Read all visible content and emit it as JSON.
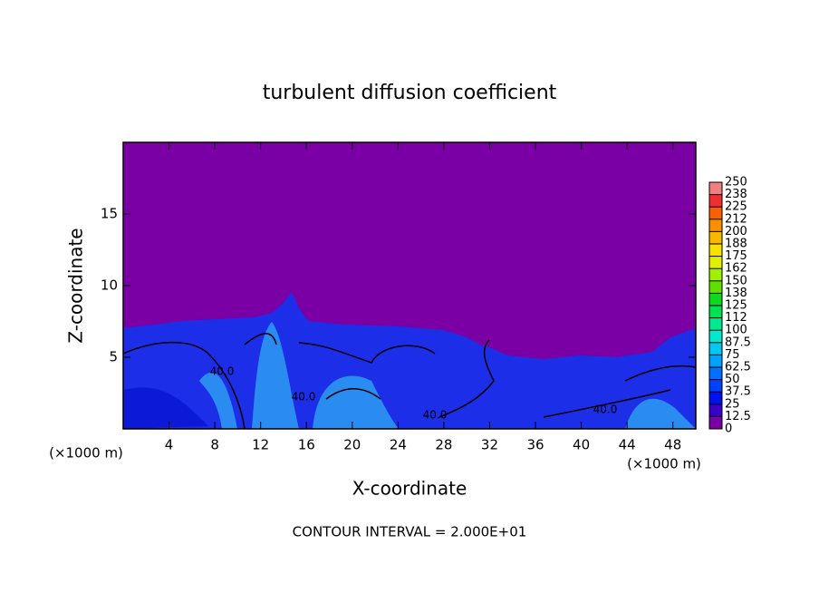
{
  "chart_data": {
    "type": "contour",
    "title": "turbulent diffusion coefficient",
    "x_label": "X-coordinate",
    "y_label": "Z-coordinate",
    "x_unit_labels": [
      "(×1000 m)",
      "(×1000 m)"
    ],
    "footer": "CONTOUR INTERVAL = 2.000E+01",
    "contour_labels": [
      "40.0",
      "40.0",
      "40.0",
      "40.0"
    ],
    "xlim": [
      0,
      50
    ],
    "ylim": [
      0,
      20
    ],
    "xticks": [
      4,
      8,
      12,
      16,
      20,
      24,
      28,
      32,
      36,
      40,
      44,
      48
    ],
    "yticks": [
      5,
      10,
      15
    ],
    "background_color": "#7a00a6",
    "colorbar": {
      "ticks": [
        0,
        12.5,
        25,
        37.5,
        50,
        62.5,
        75,
        87.5,
        100,
        {
          "value": 112.5,
          "label": "112"
        },
        125,
        {
          "value": 137.5,
          "label": "138"
        },
        150,
        {
          "value": 162.5,
          "label": "162"
        },
        175,
        {
          "value": 187.5,
          "label": "188"
        },
        200,
        {
          "value": 212.5,
          "label": "212"
        },
        225,
        {
          "value": 237.5,
          "label": "238"
        },
        250
      ],
      "colors": [
        "#7a00a6",
        "#3a00c8",
        "#0010f0",
        "#0040ff",
        "#0070ff",
        "#00a0ff",
        "#00c8f0",
        "#00e8d0",
        "#00e890",
        "#00e050",
        "#10d820",
        "#60e000",
        "#a0f000",
        "#e0f000",
        "#f8e000",
        "#f8b800",
        "#f89000",
        "#f86000",
        "#f03030",
        "#f08080"
      ]
    }
  }
}
